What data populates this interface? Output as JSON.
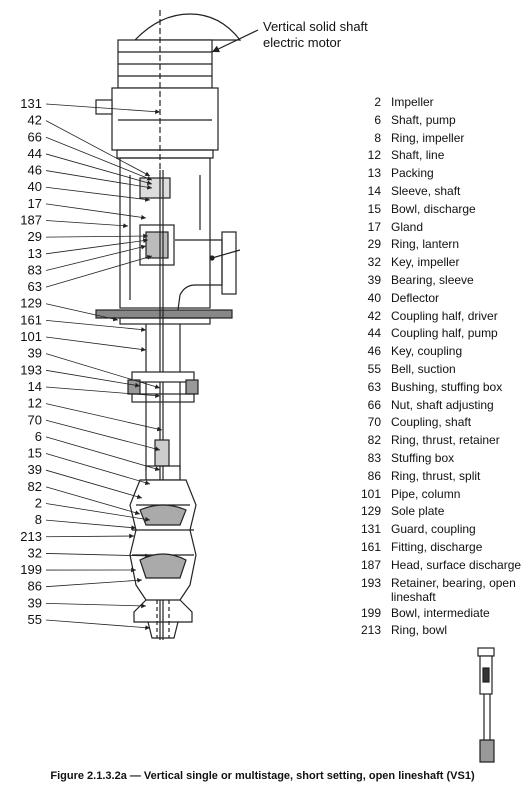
{
  "motor_label": "Vertical solid shaft electric motor",
  "callouts_left": [
    "131",
    "42",
    "66",
    "44",
    "46",
    "40",
    "17",
    "187",
    "29",
    "13",
    "83",
    "63",
    "129",
    "161",
    "101",
    "39",
    "193",
    "14",
    "12",
    "70",
    "6",
    "15",
    "39",
    "82",
    "2",
    "8",
    "213",
    "32",
    "199",
    "86",
    "39",
    "55"
  ],
  "legend": [
    {
      "num": "2",
      "desc": "Impeller"
    },
    {
      "num": "6",
      "desc": "Shaft, pump"
    },
    {
      "num": "8",
      "desc": "Ring, impeller"
    },
    {
      "num": "12",
      "desc": "Shaft, line"
    },
    {
      "num": "13",
      "desc": "Packing"
    },
    {
      "num": "14",
      "desc": "Sleeve, shaft"
    },
    {
      "num": "15",
      "desc": "Bowl, discharge"
    },
    {
      "num": "17",
      "desc": "Gland"
    },
    {
      "num": "29",
      "desc": "Ring, lantern"
    },
    {
      "num": "32",
      "desc": "Key, impeller"
    },
    {
      "num": "39",
      "desc": "Bearing, sleeve"
    },
    {
      "num": "40",
      "desc": "Deflector"
    },
    {
      "num": "42",
      "desc": "Coupling half, driver"
    },
    {
      "num": "44",
      "desc": "Coupling half, pump"
    },
    {
      "num": "46",
      "desc": "Key, coupling"
    },
    {
      "num": "55",
      "desc": "Bell, suction"
    },
    {
      "num": "63",
      "desc": "Bushing, stuffing box"
    },
    {
      "num": "66",
      "desc": "Nut, shaft adjusting"
    },
    {
      "num": "70",
      "desc": "Coupling, shaft"
    },
    {
      "num": "82",
      "desc": "Ring, thrust, retainer"
    },
    {
      "num": "83",
      "desc": "Stuffing box"
    },
    {
      "num": "86",
      "desc": "Ring, thrust, split"
    },
    {
      "num": "101",
      "desc": "Pipe, column"
    },
    {
      "num": "129",
      "desc": "Sole plate"
    },
    {
      "num": "131",
      "desc": "Guard, coupling"
    },
    {
      "num": "161",
      "desc": "Fitting, discharge"
    },
    {
      "num": "187",
      "desc": "Head, surface discharge"
    },
    {
      "num": "193",
      "desc": "Retainer, bearing, open lineshaft"
    },
    {
      "num": "199",
      "desc": "Bowl, intermediate"
    },
    {
      "num": "213",
      "desc": "Ring, bowl"
    }
  ],
  "caption": "Figure 2.1.3.2a — Vertical single or multistage, short setting, open lineshaft (VS1)"
}
